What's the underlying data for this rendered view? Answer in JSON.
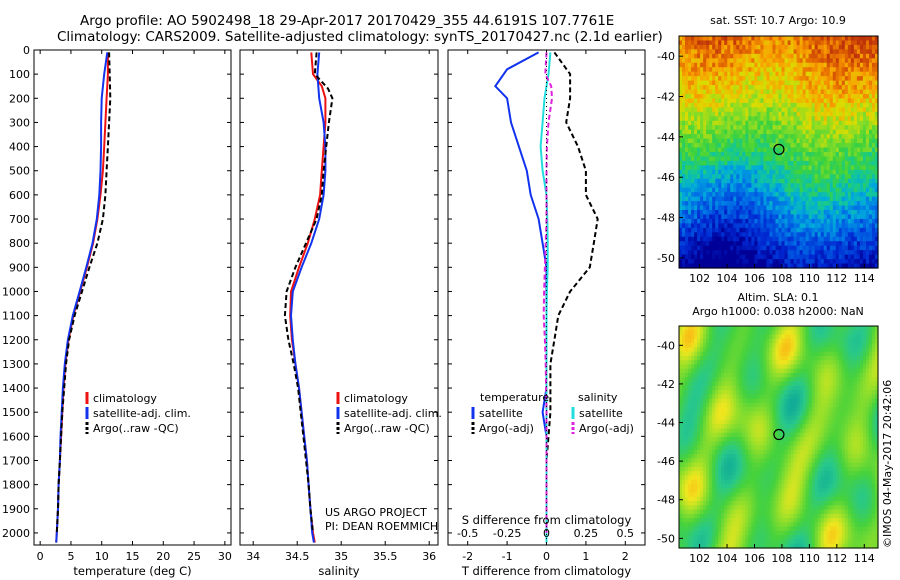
{
  "header": {
    "line1": "Argo profile: AO 5902498_18 29-Apr-2017 20170429_355 44.6191S 107.7761E",
    "line2": "Climatology: CARS2009. Satellite-adjusted climatology: synTS_20170427.nc (2.1d earlier)"
  },
  "credit": {
    "line1": "US ARGO PROJECT",
    "line2": "PI: DEAN ROEMMICH"
  },
  "watermark": "©IMOS 04-May-2017 20:42:06",
  "colors": {
    "climatology": "#ee1111",
    "satellite": "#1133ee",
    "argo": "#000000",
    "sal_satellite": "#22dddd",
    "sal_argo": "#dd22dd"
  },
  "chart_data": [
    {
      "type": "line",
      "xlabel": "temperature (deg C)",
      "xlim": [
        -1,
        31
      ],
      "ylim": [
        2050,
        0
      ],
      "xticks": [
        0,
        5,
        10,
        15,
        20,
        25,
        30
      ],
      "yticks": [
        0,
        100,
        200,
        300,
        400,
        500,
        600,
        700,
        800,
        900,
        1000,
        1100,
        1200,
        1300,
        1400,
        1500,
        1600,
        1700,
        1800,
        1900,
        2000
      ],
      "legend": [
        "climatology",
        "satellite-adj. clim.",
        "Argo(..raw -QC)"
      ],
      "series": [
        {
          "name": "climatology",
          "color": "#ee1111",
          "points": [
            [
              11.0,
              10
            ],
            [
              11.0,
              100
            ],
            [
              10.8,
              200
            ],
            [
              10.6,
              300
            ],
            [
              10.4,
              400
            ],
            [
              10.2,
              500
            ],
            [
              9.8,
              600
            ],
            [
              9.3,
              700
            ],
            [
              8.6,
              800
            ],
            [
              7.6,
              900
            ],
            [
              6.5,
              1000
            ],
            [
              5.4,
              1100
            ],
            [
              4.6,
              1200
            ],
            [
              4.1,
              1300
            ],
            [
              3.8,
              1400
            ],
            [
              3.6,
              1500
            ],
            [
              3.4,
              1600
            ],
            [
              3.2,
              1700
            ],
            [
              3.0,
              1800
            ],
            [
              2.9,
              1900
            ],
            [
              2.7,
              2000
            ],
            [
              2.6,
              2040
            ]
          ]
        },
        {
          "name": "satellite-adj. clim.",
          "color": "#1133ee",
          "points": [
            [
              10.9,
              10
            ],
            [
              10.4,
              100
            ],
            [
              10.0,
              200
            ],
            [
              9.9,
              300
            ],
            [
              9.9,
              400
            ],
            [
              9.8,
              500
            ],
            [
              9.6,
              600
            ],
            [
              9.2,
              700
            ],
            [
              8.5,
              800
            ],
            [
              7.5,
              900
            ],
            [
              6.4,
              1000
            ],
            [
              5.3,
              1100
            ],
            [
              4.5,
              1200
            ],
            [
              4.0,
              1300
            ],
            [
              3.7,
              1400
            ],
            [
              3.5,
              1500
            ],
            [
              3.3,
              1600
            ],
            [
              3.2,
              1700
            ],
            [
              3.0,
              1800
            ],
            [
              2.9,
              1900
            ],
            [
              2.7,
              2000
            ],
            [
              2.6,
              2040
            ]
          ]
        },
        {
          "name": "Argo(..raw -QC)",
          "color": "#000000",
          "dashed": true,
          "points": [
            [
              11.2,
              10
            ],
            [
              11.3,
              100
            ],
            [
              11.4,
              200
            ],
            [
              11.2,
              300
            ],
            [
              11.0,
              400
            ],
            [
              10.8,
              500
            ],
            [
              10.6,
              600
            ],
            [
              10.2,
              700
            ],
            [
              9.3,
              800
            ],
            [
              8.0,
              900
            ],
            [
              6.8,
              1000
            ],
            [
              5.6,
              1100
            ],
            [
              4.7,
              1200
            ],
            [
              4.2,
              1300
            ],
            [
              3.9,
              1400
            ],
            [
              3.6,
              1500
            ],
            [
              3.4,
              1600
            ],
            [
              3.2,
              1700
            ],
            [
              3.0,
              1800
            ],
            [
              2.9,
              1900
            ],
            [
              2.7,
              2000
            ]
          ]
        }
      ]
    },
    {
      "type": "line",
      "xlabel": "salinity",
      "xlim": [
        33.85,
        36.1
      ],
      "ylim": [
        2050,
        0
      ],
      "xticks": [
        34,
        34.5,
        35,
        35.5,
        36
      ],
      "legend": [
        "climatology",
        "satellite-adj. clim.",
        "Argo(..raw -QC)"
      ],
      "series": [
        {
          "name": "climatology",
          "color": "#ee1111",
          "points": [
            [
              34.66,
              10
            ],
            [
              34.68,
              100
            ],
            [
              34.78,
              150
            ],
            [
              34.82,
              200
            ],
            [
              34.82,
              300
            ],
            [
              34.8,
              400
            ],
            [
              34.78,
              500
            ],
            [
              34.76,
              600
            ],
            [
              34.7,
              700
            ],
            [
              34.62,
              800
            ],
            [
              34.52,
              900
            ],
            [
              34.43,
              1000
            ],
            [
              34.42,
              1100
            ],
            [
              34.44,
              1200
            ],
            [
              34.48,
              1300
            ],
            [
              34.52,
              1400
            ],
            [
              34.55,
              1500
            ],
            [
              34.58,
              1600
            ],
            [
              34.61,
              1700
            ],
            [
              34.63,
              1800
            ],
            [
              34.65,
              1900
            ],
            [
              34.68,
              2000
            ],
            [
              34.7,
              2040
            ]
          ]
        },
        {
          "name": "satellite-adj. clim.",
          "color": "#1133ee",
          "points": [
            [
              34.75,
              10
            ],
            [
              34.73,
              100
            ],
            [
              34.75,
              200
            ],
            [
              34.8,
              300
            ],
            [
              34.82,
              400
            ],
            [
              34.82,
              500
            ],
            [
              34.8,
              600
            ],
            [
              34.75,
              700
            ],
            [
              34.66,
              800
            ],
            [
              34.55,
              900
            ],
            [
              34.45,
              1000
            ],
            [
              34.43,
              1100
            ],
            [
              34.45,
              1200
            ],
            [
              34.48,
              1300
            ],
            [
              34.52,
              1400
            ],
            [
              34.55,
              1500
            ],
            [
              34.58,
              1600
            ],
            [
              34.61,
              1700
            ],
            [
              34.63,
              1800
            ],
            [
              34.65,
              1900
            ],
            [
              34.67,
              2000
            ],
            [
              34.69,
              2040
            ]
          ]
        },
        {
          "name": "Argo(..raw -QC)",
          "color": "#000000",
          "dashed": true,
          "points": [
            [
              34.72,
              10
            ],
            [
              34.7,
              100
            ],
            [
              34.85,
              160
            ],
            [
              34.9,
              200
            ],
            [
              34.86,
              300
            ],
            [
              34.83,
              400
            ],
            [
              34.8,
              500
            ],
            [
              34.78,
              600
            ],
            [
              34.72,
              700
            ],
            [
              34.6,
              800
            ],
            [
              34.48,
              900
            ],
            [
              34.38,
              1000
            ],
            [
              34.36,
              1100
            ],
            [
              34.4,
              1200
            ],
            [
              34.46,
              1300
            ],
            [
              34.51,
              1400
            ],
            [
              34.54,
              1500
            ],
            [
              34.57,
              1600
            ],
            [
              34.6,
              1700
            ],
            [
              34.63,
              1800
            ],
            [
              34.65,
              1900
            ],
            [
              34.68,
              2000
            ]
          ]
        }
      ]
    },
    {
      "type": "line",
      "xlabel": "T difference from climatology",
      "topxlabel": "S difference from climatology",
      "xlim": [
        -2.5,
        2.5
      ],
      "ylim": [
        2050,
        0
      ],
      "xticks": [
        -2,
        -1,
        0,
        1,
        2
      ],
      "topxticks": [
        "-0.5",
        "-0.25",
        "0",
        "0.25",
        "0.5"
      ],
      "legend_groups": [
        {
          "title": "temperature",
          "items": [
            "satellite",
            "Argo(-adj)"
          ]
        },
        {
          "title": "salinity",
          "items": [
            "satellite",
            "Argo(-adj)"
          ]
        }
      ],
      "series": [
        {
          "name": "satellite",
          "group": "temperature",
          "color": "#1133ee",
          "points": [
            [
              -0.2,
              10
            ],
            [
              -1.0,
              80
            ],
            [
              -1.3,
              150
            ],
            [
              -1.0,
              200
            ],
            [
              -0.9,
              300
            ],
            [
              -0.7,
              400
            ],
            [
              -0.5,
              500
            ],
            [
              -0.4,
              600
            ],
            [
              -0.2,
              700
            ],
            [
              -0.1,
              800
            ],
            [
              0,
              900
            ],
            [
              0,
              1000
            ],
            [
              0,
              1100
            ],
            [
              0,
              1200
            ],
            [
              0,
              1300
            ],
            [
              0,
              1400
            ],
            [
              -0.1,
              1500
            ],
            [
              0,
              1600
            ],
            [
              0,
              1700
            ],
            [
              0,
              1800
            ],
            [
              0,
              1900
            ],
            [
              0,
              2000
            ],
            [
              0,
              2040
            ]
          ]
        },
        {
          "name": "Argo(-adj)",
          "group": "temperature",
          "color": "#000000",
          "dashed": true,
          "points": [
            [
              0.2,
              10
            ],
            [
              0.6,
              100
            ],
            [
              0.6,
              200
            ],
            [
              0.5,
              300
            ],
            [
              0.8,
              400
            ],
            [
              1.0,
              500
            ],
            [
              1.0,
              600
            ],
            [
              1.3,
              700
            ],
            [
              1.2,
              800
            ],
            [
              1.1,
              900
            ],
            [
              0.6,
              1000
            ],
            [
              0.3,
              1100
            ],
            [
              0.2,
              1200
            ],
            [
              0.1,
              1300
            ],
            [
              0.1,
              1400
            ],
            [
              0.1,
              1500
            ],
            [
              0.05,
              1600
            ],
            [
              0,
              1700
            ],
            [
              0,
              1800
            ],
            [
              0,
              1900
            ],
            [
              0,
              2000
            ]
          ]
        },
        {
          "name": "satellite",
          "group": "salinity",
          "color": "#22dddd",
          "points": [
            [
              0.1,
              10
            ],
            [
              0.05,
              100
            ],
            [
              -0.05,
              200
            ],
            [
              -0.1,
              300
            ],
            [
              -0.15,
              400
            ],
            [
              -0.1,
              500
            ],
            [
              0,
              600
            ],
            [
              0.02,
              700
            ],
            [
              0.03,
              800
            ],
            [
              0.03,
              900
            ],
            [
              0.01,
              1000
            ],
            [
              0,
              1100
            ],
            [
              0,
              1200
            ],
            [
              0,
              1300
            ],
            [
              0,
              1400
            ],
            [
              0,
              1500
            ],
            [
              0,
              1600
            ],
            [
              0,
              1700
            ],
            [
              0,
              1800
            ],
            [
              0,
              1900
            ],
            [
              0,
              2000
            ],
            [
              0,
              2040
            ]
          ]
        },
        {
          "name": "Argo(-adj)",
          "group": "salinity",
          "color": "#dd22dd",
          "dashed": true,
          "points": [
            [
              0.0,
              10
            ],
            [
              -0.03,
              100
            ],
            [
              0.12,
              150
            ],
            [
              0.14,
              200
            ],
            [
              0.05,
              300
            ],
            [
              0.01,
              400
            ],
            [
              0.0,
              500
            ],
            [
              0.0,
              600
            ],
            [
              0.0,
              700
            ],
            [
              -0.02,
              800
            ],
            [
              -0.04,
              900
            ],
            [
              -0.06,
              1000
            ],
            [
              -0.07,
              1100
            ],
            [
              -0.04,
              1200
            ],
            [
              -0.02,
              1300
            ],
            [
              -0.01,
              1400
            ],
            [
              0,
              1500
            ],
            [
              0,
              1600
            ],
            [
              0,
              1700
            ],
            [
              0,
              1800
            ],
            [
              0,
              1900
            ],
            [
              0,
              2000
            ]
          ]
        }
      ]
    },
    {
      "type": "heatmap",
      "title": "sat. SST: 10.7  Argo: 10.9",
      "xlim": [
        100.5,
        115
      ],
      "ylim": [
        -50.5,
        -39
      ],
      "xticks": [
        "102",
        "104",
        "106",
        "108",
        "110",
        "112",
        "114"
      ],
      "yticks": [
        "-40",
        "-42",
        "-44",
        "-46",
        "-48",
        "-50"
      ],
      "marker": {
        "lon": 107.78,
        "lat": -44.62
      }
    },
    {
      "type": "heatmap",
      "title_line1": "Altim. SLA: 0.1",
      "title_line2": "Argo h1000: 0.038 h2000: NaN",
      "xlim": [
        100.5,
        115
      ],
      "ylim": [
        -50.5,
        -39
      ],
      "xticks": [
        "102",
        "104",
        "106",
        "108",
        "110",
        "112",
        "114"
      ],
      "yticks": [
        "-40",
        "-42",
        "-44",
        "-46",
        "-48",
        "-50"
      ],
      "marker": {
        "lon": 107.78,
        "lat": -44.62
      }
    }
  ]
}
